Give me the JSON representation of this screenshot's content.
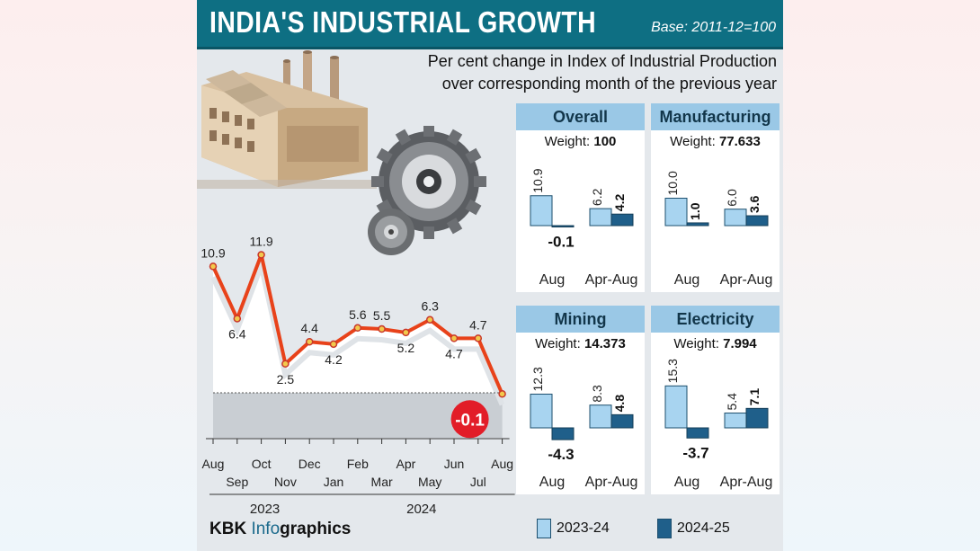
{
  "header": {
    "title": "INDIA'S INDUSTRIAL GROWTH",
    "base": "Base: 2011-12=100",
    "subtitle_line1": "Per cent change in Index of Industrial Production",
    "subtitle_line2": "over corresponding month of the previous year"
  },
  "colors": {
    "title_bar": "#0e6f83",
    "panel_header": "#9ac8e6",
    "series_2023_24": "#a8d4f0",
    "series_2024_25": "#1f5f8a",
    "line": "#e8421a",
    "highlight": "#e21d28"
  },
  "legend": {
    "series1": "2023-24",
    "series2": "2024-25"
  },
  "footer": {
    "brand_prefix": "KBK ",
    "brand_info": "Info",
    "brand_suffix": "graphics"
  },
  "chart_data": [
    {
      "type": "line",
      "title": "Per cent change in Index of Industrial Production",
      "x": [
        "Aug",
        "Sep",
        "Oct",
        "Nov",
        "Dec",
        "Jan",
        "Feb",
        "Mar",
        "Apr",
        "May",
        "Jun",
        "Jul",
        "Aug"
      ],
      "year_labels": [
        "2023",
        "2024"
      ],
      "values": [
        10.9,
        6.4,
        11.9,
        2.5,
        4.4,
        4.2,
        5.6,
        5.5,
        5.2,
        6.3,
        4.7,
        4.7,
        -0.1
      ],
      "highlight_last": "-0.1",
      "ylim": [
        -1,
        13
      ]
    },
    {
      "type": "bar",
      "title": "Overall",
      "weight_label": "Weight:",
      "weight": "100",
      "categories": [
        "Aug",
        "Apr-Aug"
      ],
      "series": [
        {
          "name": "2023-24",
          "values": [
            10.9,
            6.2
          ]
        },
        {
          "name": "2024-25",
          "values": [
            -0.1,
            4.2
          ]
        }
      ]
    },
    {
      "type": "bar",
      "title": "Manufacturing",
      "weight_label": "Weight:",
      "weight": "77.633",
      "categories": [
        "Aug",
        "Apr-Aug"
      ],
      "series": [
        {
          "name": "2023-24",
          "values": [
            10.0,
            6.0
          ]
        },
        {
          "name": "2024-25",
          "values": [
            1.0,
            3.6
          ]
        }
      ]
    },
    {
      "type": "bar",
      "title": "Mining",
      "weight_label": "Weight:",
      "weight": "14.373",
      "categories": [
        "Aug",
        "Apr-Aug"
      ],
      "series": [
        {
          "name": "2023-24",
          "values": [
            12.3,
            8.3
          ]
        },
        {
          "name": "2024-25",
          "values": [
            -4.3,
            4.8
          ]
        }
      ]
    },
    {
      "type": "bar",
      "title": "Electricity",
      "weight_label": "Weight:",
      "weight": "7.994",
      "categories": [
        "Aug",
        "Apr-Aug"
      ],
      "series": [
        {
          "name": "2023-24",
          "values": [
            15.3,
            5.4
          ]
        },
        {
          "name": "2024-25",
          "values": [
            -3.7,
            7.1
          ]
        }
      ]
    }
  ]
}
